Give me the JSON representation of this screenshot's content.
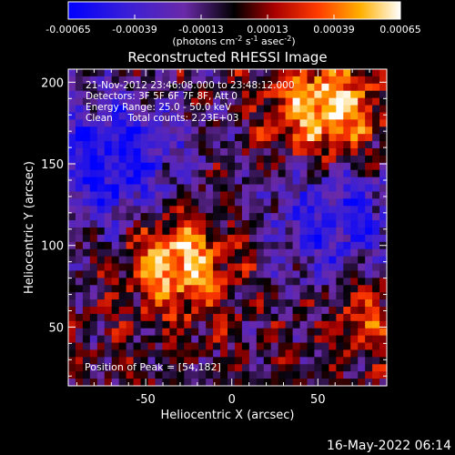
{
  "colorbar": {
    "ticks": [
      "-0.00065",
      "-0.00039",
      "-0.00013",
      "0.00013",
      "0.00039",
      "0.00065"
    ],
    "units_prefix": "(photons cm",
    "units_exp1": "-2",
    "units_mid": " s",
    "units_exp2": "-1",
    "units_mid2": " asec",
    "units_exp3": "-2",
    "units_suffix": ")",
    "range": [
      -0.00065,
      0.00065
    ]
  },
  "chart_data": {
    "type": "heatmap",
    "title": "Reconstructed RHESSI Image",
    "xlabel": "Heliocentric X (arcsec)",
    "ylabel": "Heliocentric Y (arcsec)",
    "x_ticks": [
      "-50",
      "0",
      "50"
    ],
    "y_ticks": [
      "50",
      "100",
      "150",
      "200"
    ],
    "xlim": [
      -95,
      90
    ],
    "ylim": [
      14,
      208
    ],
    "colormap": "rhessi-flame (blue-purple-black-red-orange-yellow-white)",
    "info_lines": [
      "21-Nov-2012 23:46:08.000 to 23:48:12.000",
      "Detectors: 3F 5F 6F 7F 8F, Att 0",
      "Energy Range: 25.0 - 50.0 keV",
      "Clean     Total counts: 2.23E+03"
    ],
    "peak_label": "Position of Peak = [54,182]",
    "peak_position": [
      54,
      182
    ],
    "total_counts": "2.23E+03",
    "features": [
      {
        "kind": "bright source",
        "x": -30,
        "y": 90,
        "intensity": 0.95
      },
      {
        "kind": "bright source",
        "x": 54,
        "y": 182,
        "intensity": 1.0
      },
      {
        "kind": "dim region",
        "x": -70,
        "y": 150,
        "intensity": -0.85
      },
      {
        "kind": "dim region",
        "x": 60,
        "y": 115,
        "intensity": -0.7
      },
      {
        "kind": "moderate emission",
        "x": 80,
        "y": 60,
        "intensity": 0.5
      }
    ]
  },
  "footer": {
    "timestamp": "16-May-2022 06:14"
  }
}
